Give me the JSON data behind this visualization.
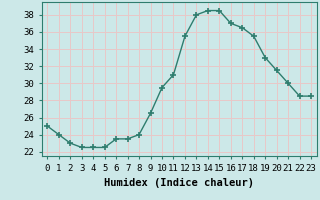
{
  "x": [
    0,
    1,
    2,
    3,
    4,
    5,
    6,
    7,
    8,
    9,
    10,
    11,
    12,
    13,
    14,
    15,
    16,
    17,
    18,
    19,
    20,
    21,
    22,
    23
  ],
  "y": [
    25,
    24,
    23,
    22.5,
    22.5,
    22.5,
    23.5,
    23.5,
    24,
    26.5,
    29.5,
    31,
    35.5,
    38,
    38.5,
    38.5,
    37,
    36.5,
    35.5,
    33,
    31.5,
    30,
    28.5,
    28.5
  ],
  "line_color": "#2e7d6e",
  "marker_color": "#2e7d6e",
  "bg_color": "#cce8e8",
  "grid_color": "#e8c8c8",
  "xlabel": "Humidex (Indice chaleur)",
  "ylabel": "",
  "ylim": [
    21.5,
    39.5
  ],
  "xlim": [
    -0.5,
    23.5
  ],
  "yticks": [
    22,
    24,
    26,
    28,
    30,
    32,
    34,
    36,
    38
  ],
  "xtick_labels": [
    "0",
    "1",
    "2",
    "3",
    "4",
    "5",
    "6",
    "7",
    "8",
    "9",
    "10",
    "11",
    "12",
    "13",
    "14",
    "15",
    "16",
    "17",
    "18",
    "19",
    "20",
    "21",
    "22",
    "23"
  ],
  "xlabel_fontsize": 7.5,
  "tick_fontsize": 6.5,
  "line_width": 1.0,
  "marker_size": 4.0
}
